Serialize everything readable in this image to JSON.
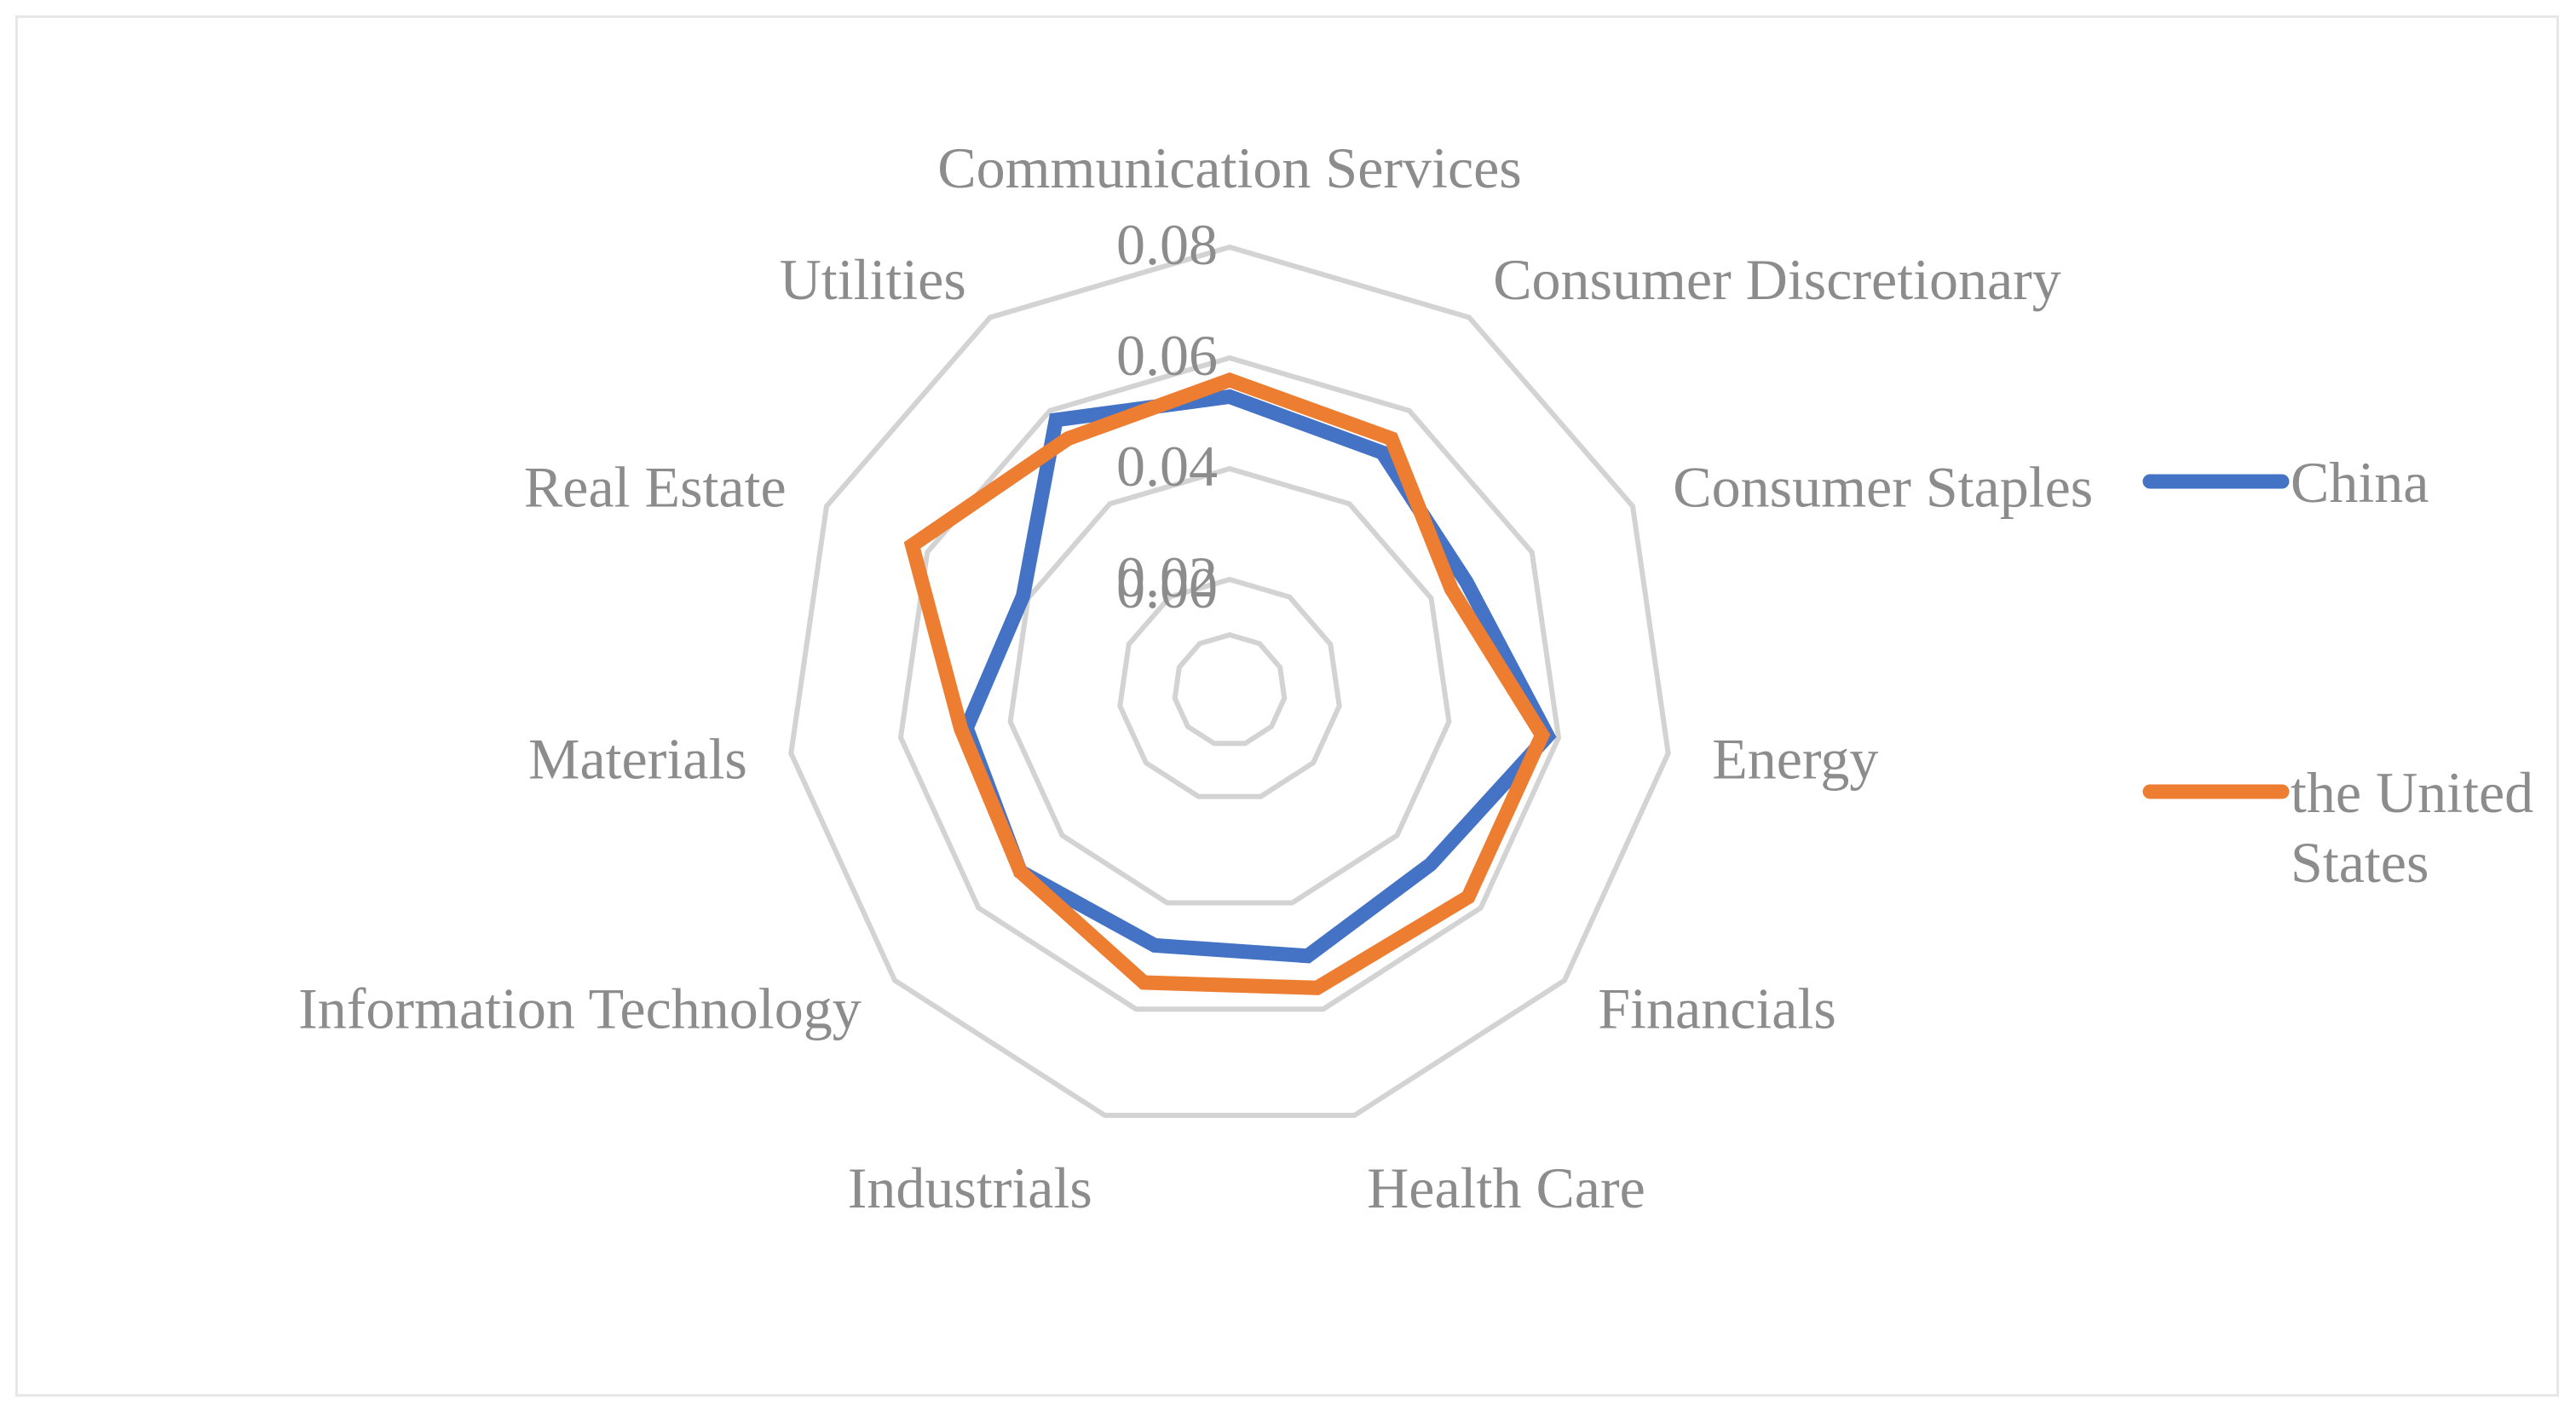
{
  "chart_data": {
    "type": "radar",
    "categories": [
      "Communication Services",
      "Consumer Discretionary",
      "Consumer Staples",
      "Energy",
      "Financials",
      "Health Care",
      "Industrials",
      "Information Technology",
      "Materials",
      "Real Estate",
      "Utilities"
    ],
    "series": [
      {
        "name": "China",
        "color": "#4472C4",
        "values": [
          0.053,
          0.051,
          0.047,
          0.058,
          0.048,
          0.05,
          0.048,
          0.05,
          0.048,
          0.041,
          0.058
        ]
      },
      {
        "name": "the United States",
        "color": "#ED7D31",
        "values": [
          0.056,
          0.054,
          0.044,
          0.057,
          0.057,
          0.056,
          0.055,
          0.05,
          0.049,
          0.063,
          0.054
        ]
      }
    ],
    "ticks": [
      "0.00",
      "0.02",
      "0.04",
      "0.06",
      "0.08"
    ],
    "rlim": [
      0,
      0.08
    ],
    "grid": true,
    "legend_position": "right",
    "grid_color": "#D3D3D3",
    "label_color": "#8C8C8C"
  }
}
